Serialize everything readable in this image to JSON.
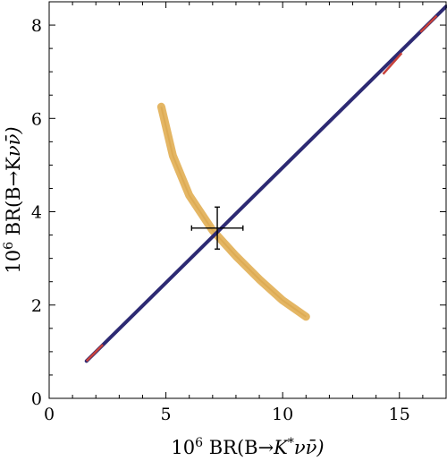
{
  "chart_data": {
    "type": "scatter",
    "xlabel": "10^6 BR(B→K^*νν̄)",
    "ylabel": "10^6 BR(B→Kνν̄)",
    "xlim": [
      0,
      17
    ],
    "ylim": [
      0,
      8.5
    ],
    "x_ticks": [
      0,
      5,
      10,
      15
    ],
    "y_ticks": [
      0,
      2,
      4,
      6,
      8
    ],
    "grid": false,
    "legend": "none",
    "series": [
      {
        "shape": "line-band",
        "color": "#2d2a73",
        "x": [
          1.6,
          17.0
        ],
        "y": [
          0.8,
          8.4
        ]
      },
      {
        "shape": "line-segments",
        "color": "#c8413a",
        "segments": [
          [
            [
              1.6,
              0.8
            ],
            [
              2.3,
              1.15
            ]
          ],
          [
            [
              14.3,
              6.95
            ],
            [
              15.1,
              7.4
            ]
          ],
          [
            [
              15.9,
              7.85
            ],
            [
              16.6,
              8.2
            ]
          ]
        ]
      },
      {
        "shape": "curved-band",
        "color": "#e3b25c",
        "x": [
          4.8,
          5.3,
          6.0,
          7.0,
          8.0,
          9.0,
          10.0,
          11.0
        ],
        "y": [
          6.25,
          5.2,
          4.35,
          3.6,
          3.05,
          2.55,
          2.1,
          1.75
        ]
      }
    ],
    "annotations": [
      {
        "type": "errorbar",
        "x": 7.2,
        "y": 3.65,
        "xerr": [
          1.1,
          1.1
        ],
        "yerr": [
          0.45,
          0.45
        ],
        "color": "#000000"
      }
    ]
  }
}
